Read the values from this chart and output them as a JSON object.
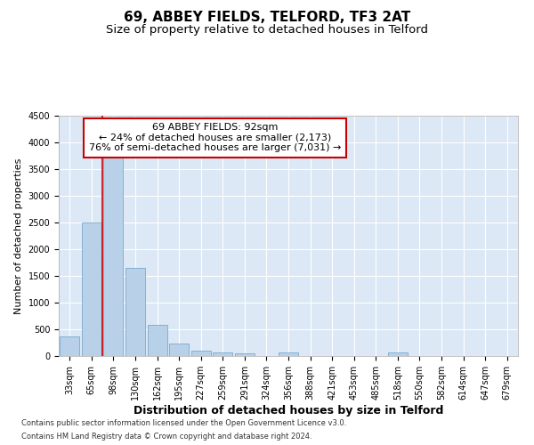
{
  "title": "69, ABBEY FIELDS, TELFORD, TF3 2AT",
  "subtitle": "Size of property relative to detached houses in Telford",
  "xlabel": "Distribution of detached houses by size in Telford",
  "ylabel": "Number of detached properties",
  "categories": [
    "33sqm",
    "65sqm",
    "98sqm",
    "130sqm",
    "162sqm",
    "195sqm",
    "227sqm",
    "259sqm",
    "291sqm",
    "324sqm",
    "356sqm",
    "388sqm",
    "421sqm",
    "453sqm",
    "485sqm",
    "518sqm",
    "550sqm",
    "582sqm",
    "614sqm",
    "647sqm",
    "679sqm"
  ],
  "values": [
    370,
    2500,
    3750,
    1650,
    590,
    230,
    100,
    65,
    45,
    0,
    65,
    0,
    0,
    0,
    0,
    60,
    0,
    0,
    0,
    0,
    0
  ],
  "bar_color": "#b8d0e8",
  "bar_edge_color": "#6aa0c8",
  "bar_edge_width": 0.5,
  "vline_color": "#cc0000",
  "vline_linewidth": 1.2,
  "vline_x": 1.5,
  "annotation_line1": "69 ABBEY FIELDS: 92sqm",
  "annotation_line2": "← 24% of detached houses are smaller (2,173)",
  "annotation_line3": "76% of semi-detached houses are larger (7,031) →",
  "annotation_box_color": "#cc0000",
  "ylim": [
    0,
    4500
  ],
  "yticks": [
    0,
    500,
    1000,
    1500,
    2000,
    2500,
    3000,
    3500,
    4000,
    4500
  ],
  "background_color": "#dce8f5",
  "grid_color": "#ffffff",
  "footer_line1": "Contains HM Land Registry data © Crown copyright and database right 2024.",
  "footer_line2": "Contains public sector information licensed under the Open Government Licence v3.0.",
  "title_fontsize": 11,
  "subtitle_fontsize": 9.5,
  "xlabel_fontsize": 9,
  "ylabel_fontsize": 8,
  "tick_fontsize": 7,
  "annotation_fontsize": 8,
  "footer_fontsize": 6
}
